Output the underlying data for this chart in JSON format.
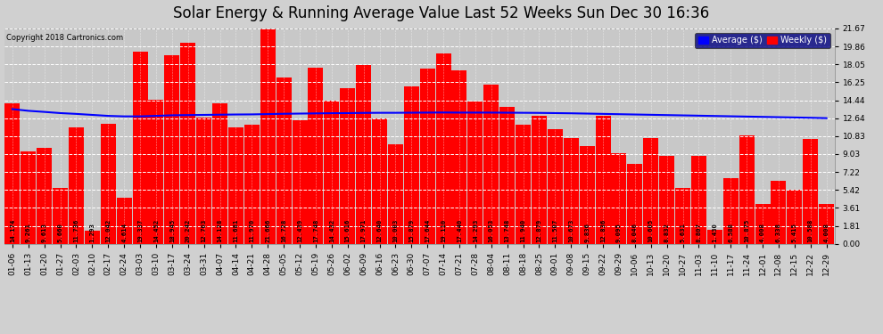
{
  "title": "Solar Energy & Running Average Value Last 52 Weeks Sun Dec 30 16:36",
  "copyright": "Copyright 2018 Cartronics.com",
  "bar_color": "#ff0000",
  "avg_line_color": "#0000ff",
  "background_color": "#d0d0d0",
  "plot_bg_color": "#c8c8c8",
  "grid_color": "#ffffff",
  "categories": [
    "01-06",
    "01-13",
    "01-20",
    "01-27",
    "02-03",
    "02-10",
    "02-17",
    "02-24",
    "03-03",
    "03-10",
    "03-17",
    "03-24",
    "03-31",
    "04-07",
    "04-14",
    "04-21",
    "04-28",
    "05-05",
    "05-12",
    "05-19",
    "05-26",
    "06-02",
    "06-09",
    "06-16",
    "06-23",
    "06-30",
    "07-07",
    "07-14",
    "07-21",
    "07-28",
    "08-04",
    "08-11",
    "08-18",
    "08-25",
    "09-01",
    "09-08",
    "09-15",
    "09-22",
    "09-29",
    "10-06",
    "10-13",
    "10-20",
    "10-27",
    "11-03",
    "11-10",
    "11-17",
    "11-24",
    "12-01",
    "12-08",
    "12-15",
    "12-22",
    "12-29"
  ],
  "values": [
    14.174,
    9.261,
    9.613,
    5.66,
    11.736,
    1.293,
    12.042,
    4.614,
    19.337,
    14.452,
    18.945,
    20.242,
    12.703,
    14.128,
    11.681,
    11.97,
    21.666,
    16.728,
    12.439,
    17.748,
    14.432,
    15.616,
    17.971,
    12.64,
    10.003,
    15.879,
    17.644,
    19.11,
    17.44,
    14.293,
    16.053,
    13.748,
    11.94,
    12.879,
    11.507,
    10.673,
    9.836,
    12.836,
    9.095,
    8.046,
    10.605,
    8.832,
    5.631,
    8.807,
    1.43,
    6.588,
    10.875,
    4.008,
    6.338,
    5.415,
    10.588,
    4.008
  ],
  "avg_values": [
    13.55,
    13.38,
    13.27,
    13.15,
    13.07,
    12.97,
    12.87,
    12.82,
    12.82,
    12.87,
    12.93,
    12.95,
    12.97,
    12.99,
    13.01,
    13.02,
    13.05,
    13.08,
    13.1,
    13.12,
    13.14,
    13.15,
    13.17,
    13.18,
    13.18,
    13.19,
    13.2,
    13.21,
    13.2,
    13.2,
    13.2,
    13.19,
    13.18,
    13.17,
    13.15,
    13.13,
    13.1,
    13.07,
    13.04,
    13.01,
    12.98,
    12.95,
    12.92,
    12.89,
    12.86,
    12.83,
    12.8,
    12.77,
    12.74,
    12.71,
    12.68,
    12.64
  ],
  "ylabel_right_values": [
    0.0,
    1.81,
    3.61,
    5.42,
    7.22,
    9.03,
    10.83,
    12.64,
    14.44,
    16.25,
    18.05,
    19.86,
    21.67
  ],
  "ylim": [
    0,
    21.67
  ],
  "title_fontsize": 12,
  "tick_fontsize": 6.5,
  "label_fontsize": 5.2,
  "legend_labels": [
    "Average ($)",
    "Weekly ($)"
  ],
  "legend_colors": [
    "#0000ff",
    "#ff0000"
  ],
  "legend_bg": "#000080"
}
